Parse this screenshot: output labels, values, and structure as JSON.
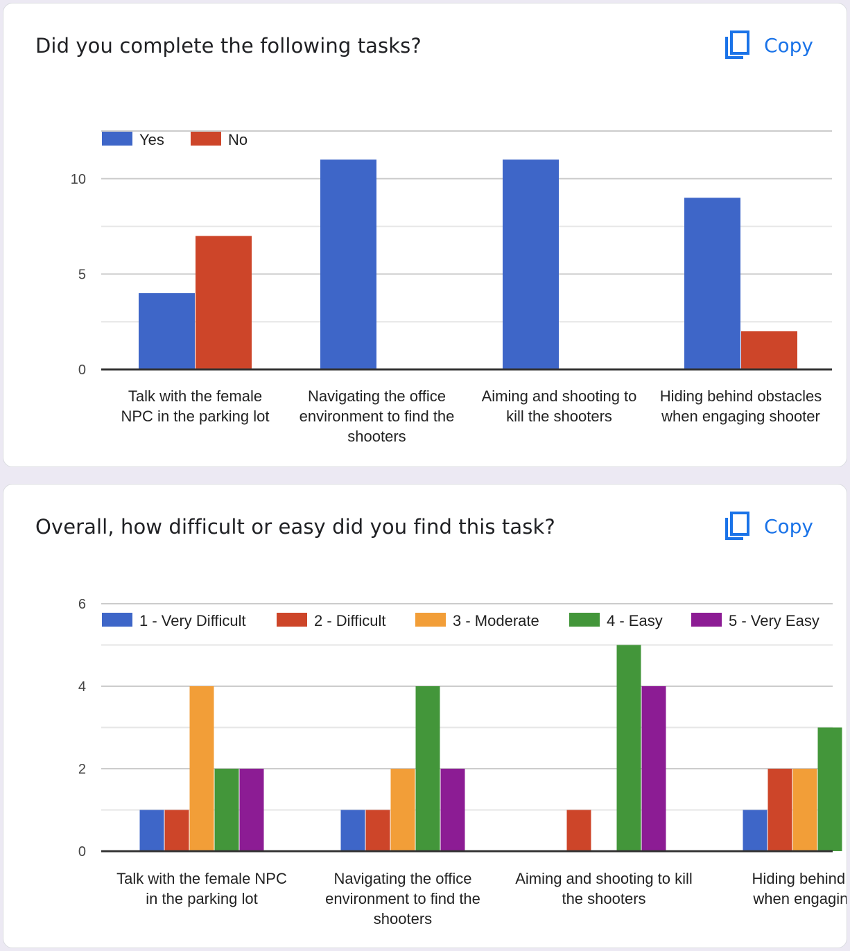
{
  "cards": [
    {
      "title": "Did you complete the following tasks?",
      "copy_label": "Copy",
      "copy_icon": "copy-icon"
    },
    {
      "title": "Overall, how difficult or easy did you find this task?",
      "copy_label": "Copy",
      "copy_icon": "copy-icon"
    }
  ],
  "chart_data": [
    {
      "type": "bar",
      "categories": [
        "Talk with the female NPC in the parking lot",
        "Navigating the office environment to find the shooters",
        "Aiming and shooting to kill the shooters",
        "Hiding behind obstacles when engaging shooter"
      ],
      "category_lines": [
        [
          "Talk with the female",
          "NPC in the parking lot"
        ],
        [
          "Navigating the office",
          "environment to find the",
          "shooters"
        ],
        [
          "Aiming and shooting to",
          "kill the shooters"
        ],
        [
          "Hiding behind obstacles",
          "when engaging shooter"
        ]
      ],
      "series": [
        {
          "name": "Yes",
          "color": "#3e66c8",
          "values": [
            4,
            11,
            11,
            9
          ]
        },
        {
          "name": "No",
          "color": "#cd4529",
          "values": [
            7,
            0,
            0,
            2
          ]
        }
      ],
      "ylim": [
        0,
        12.5
      ],
      "yticks": [
        0,
        5,
        10
      ],
      "gridlines": [
        0,
        2.5,
        5,
        7.5,
        10,
        12.5
      ],
      "legend": "top-left",
      "title": "",
      "xlabel": "",
      "ylabel": ""
    },
    {
      "type": "bar",
      "categories": [
        "Talk with the female NPC in the parking lot",
        "Navigating the office environment to find the shooters",
        "Aiming and shooting to kill the shooters",
        "Hiding behind obstacles when engaging shooter"
      ],
      "category_lines": [
        [
          "Talk with the female NPC",
          "in the parking lot"
        ],
        [
          "Navigating the office",
          "environment to find the",
          "shooters"
        ],
        [
          "Aiming and shooting to kill",
          "the shooters"
        ],
        [
          "Hiding behind o",
          "when engaging"
        ]
      ],
      "series": [
        {
          "name": "1 - Very Difficult",
          "color": "#3e66c8",
          "values": [
            1,
            1,
            0,
            1
          ]
        },
        {
          "name": "2 - Difficult",
          "color": "#cd4529",
          "values": [
            1,
            1,
            1,
            2
          ]
        },
        {
          "name": "3 - Moderate",
          "color": "#f29e38",
          "values": [
            4,
            2,
            0,
            2
          ]
        },
        {
          "name": "4 - Easy",
          "color": "#43963a",
          "values": [
            2,
            4,
            5,
            3
          ]
        },
        {
          "name": "5 - Very Easy",
          "color": "#8c1c94",
          "values": [
            2,
            2,
            4,
            0
          ]
        }
      ],
      "ylim": [
        0,
        6
      ],
      "yticks": [
        0,
        2,
        4,
        6
      ],
      "gridlines": [
        0,
        1,
        2,
        3,
        4,
        5,
        6
      ],
      "legend": "top",
      "title": "",
      "xlabel": "",
      "ylabel": ""
    }
  ]
}
